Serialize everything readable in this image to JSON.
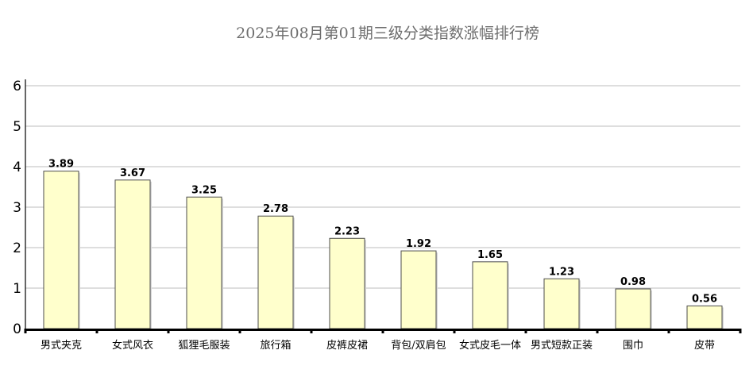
{
  "chart_data": {
    "type": "bar",
    "title": "2025年08月第01期三级分类指数涨幅排行榜",
    "categories": [
      "男式夹克",
      "女式风衣",
      "狐狸毛服装",
      "旅行箱",
      "皮裤皮裙",
      "背包/双肩包",
      "女式皮毛一体",
      "男式短款正装",
      "围巾",
      "皮带"
    ],
    "values": [
      3.89,
      3.67,
      3.25,
      2.78,
      2.23,
      1.92,
      1.65,
      1.23,
      0.98,
      0.56
    ],
    "value_labels": [
      "3.89",
      "3.67",
      "3.25",
      "2.78",
      "2.23",
      "1.92",
      "1.65",
      "1.23",
      "0.98",
      "0.56"
    ],
    "ylim": [
      0,
      6
    ],
    "yticks": [
      "0",
      "1",
      "2",
      "3",
      "4",
      "5",
      "6"
    ],
    "xlabel": "",
    "ylabel": "",
    "grid": true,
    "legend": "none",
    "colors": {
      "bar_fill": "#ffffcc",
      "bar_stroke": "#4d4d4d",
      "grid": "#bdbdbd",
      "axis": "#000000",
      "title": "#6e6e6e"
    }
  }
}
